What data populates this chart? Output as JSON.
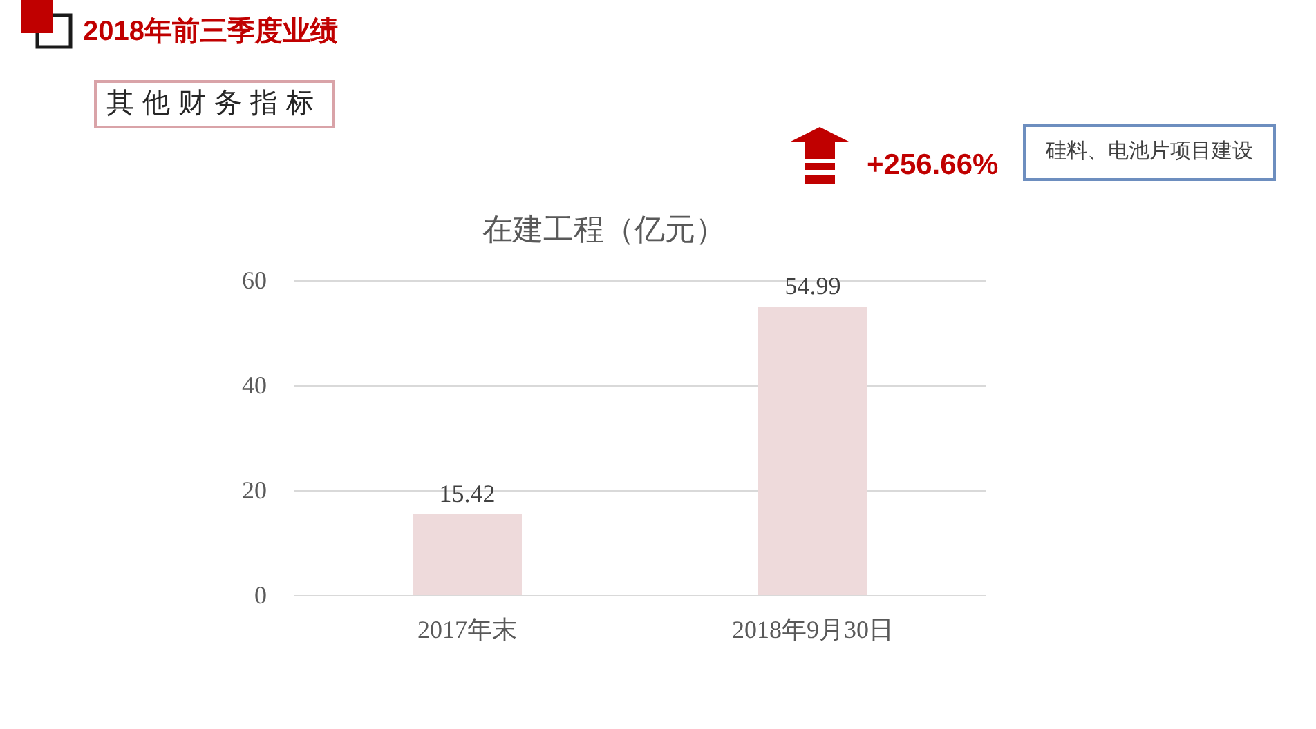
{
  "chart_data": {
    "type": "bar",
    "title": "在建工程（亿元）",
    "categories": [
      "2017年末",
      "2018年9月30日"
    ],
    "values": [
      15.42,
      54.99
    ],
    "color": "#eedadb",
    "ylim": [
      0,
      60
    ],
    "yticks": [
      0,
      20,
      40,
      60
    ],
    "grid": "y",
    "data_labels": true,
    "annotations": [
      "2018年前三季度业绩",
      "其他财务指标",
      "+256.66%",
      "硅料、电池片项目建设"
    ]
  }
}
